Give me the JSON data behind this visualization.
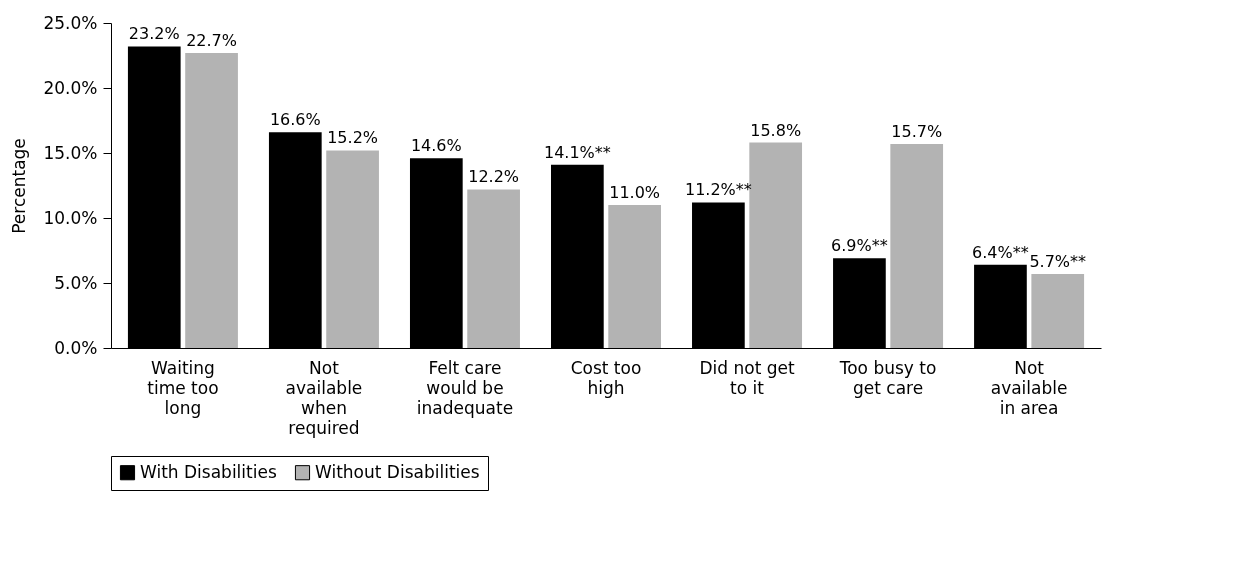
{
  "chart_data": {
    "type": "bar",
    "ylabel": "Percentage",
    "categories": [
      "Waiting\ntime too\nlong",
      "Not\navailable\nwhen\nrequired",
      "Felt care\nwould be\ninadequate",
      "Cost too\nhigh",
      "Did not get\nto it",
      "Too busy to\nget care",
      "Not\navailable\nin area"
    ],
    "series": [
      {
        "name": "With Disabilities",
        "color": "#000000",
        "values": [
          23.2,
          16.6,
          14.6,
          14.1,
          11.2,
          6.9,
          6.4
        ],
        "value_labels": [
          "23.2%",
          "16.6%",
          "14.6%",
          "14.1%**",
          "11.2%**",
          "6.9%**",
          "6.4%**"
        ]
      },
      {
        "name": "Without Disabilities",
        "color": "#b3b3b3",
        "values": [
          22.7,
          15.2,
          12.2,
          11.0,
          15.8,
          15.7,
          5.7
        ],
        "value_labels": [
          "22.7%",
          "15.2%",
          "12.2%",
          "11.0%",
          "15.8%",
          "15.7%",
          "5.7%**"
        ]
      }
    ],
    "ylim": [
      0,
      25
    ],
    "yticks": [
      {
        "value": 0,
        "label": "0.0%"
      },
      {
        "value": 5,
        "label": "5.0%"
      },
      {
        "value": 10,
        "label": "10.0%"
      },
      {
        "value": 15,
        "label": "15.0%"
      },
      {
        "value": 20,
        "label": "20.0%"
      },
      {
        "value": 25,
        "label": "25.0%"
      }
    ],
    "grid": false,
    "legend": "bottom"
  }
}
